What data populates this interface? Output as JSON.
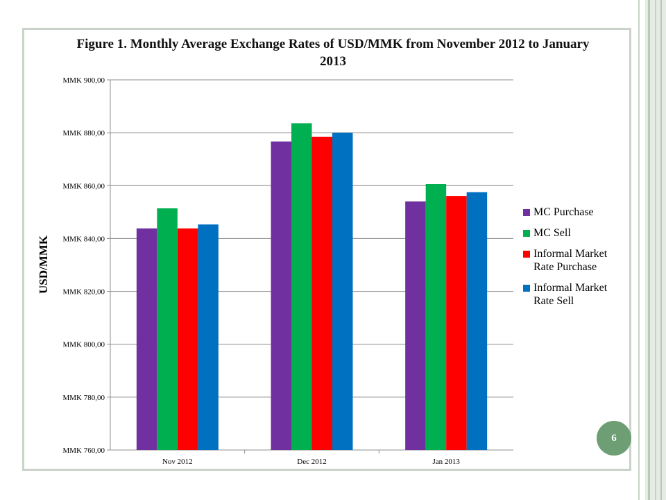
{
  "slide": {
    "page_number": "6",
    "accent_color": "#6e9e74"
  },
  "chart_data": {
    "type": "bar",
    "title": "Figure 1. Monthly Average Exchange Rates of USD/MMK from  November 2012  to January 2013",
    "ylabel": "USD/MMK",
    "ylim": [
      760,
      900
    ],
    "y_ticks": [
      760,
      780,
      800,
      820,
      840,
      860,
      880,
      900
    ],
    "y_tick_labels": [
      "MMK 760,00",
      "MMK 780,00",
      "MMK 800,00",
      "MMK 820,00",
      "MMK 840,00",
      "MMK 860,00",
      "MMK 880,00",
      "MMK 900,00"
    ],
    "categories": [
      "Nov 2012",
      "Dec 2012",
      "Jan 2013"
    ],
    "grid": true,
    "legend_position": "right",
    "series": [
      {
        "name": "MC Purchase",
        "color": "#7030a0",
        "values": [
          843.8,
          876.7,
          854.0
        ]
      },
      {
        "name": "MC Sell",
        "color": "#00b050",
        "values": [
          851.4,
          883.6,
          860.6
        ]
      },
      {
        "name": "Informal Market Rate Purchase",
        "color": "#ff0000",
        "values": [
          843.8,
          878.5,
          856.1
        ]
      },
      {
        "name": "Informal Market Rate Sell",
        "color": "#0070c0",
        "values": [
          845.3,
          880.0,
          857.5
        ]
      }
    ]
  }
}
